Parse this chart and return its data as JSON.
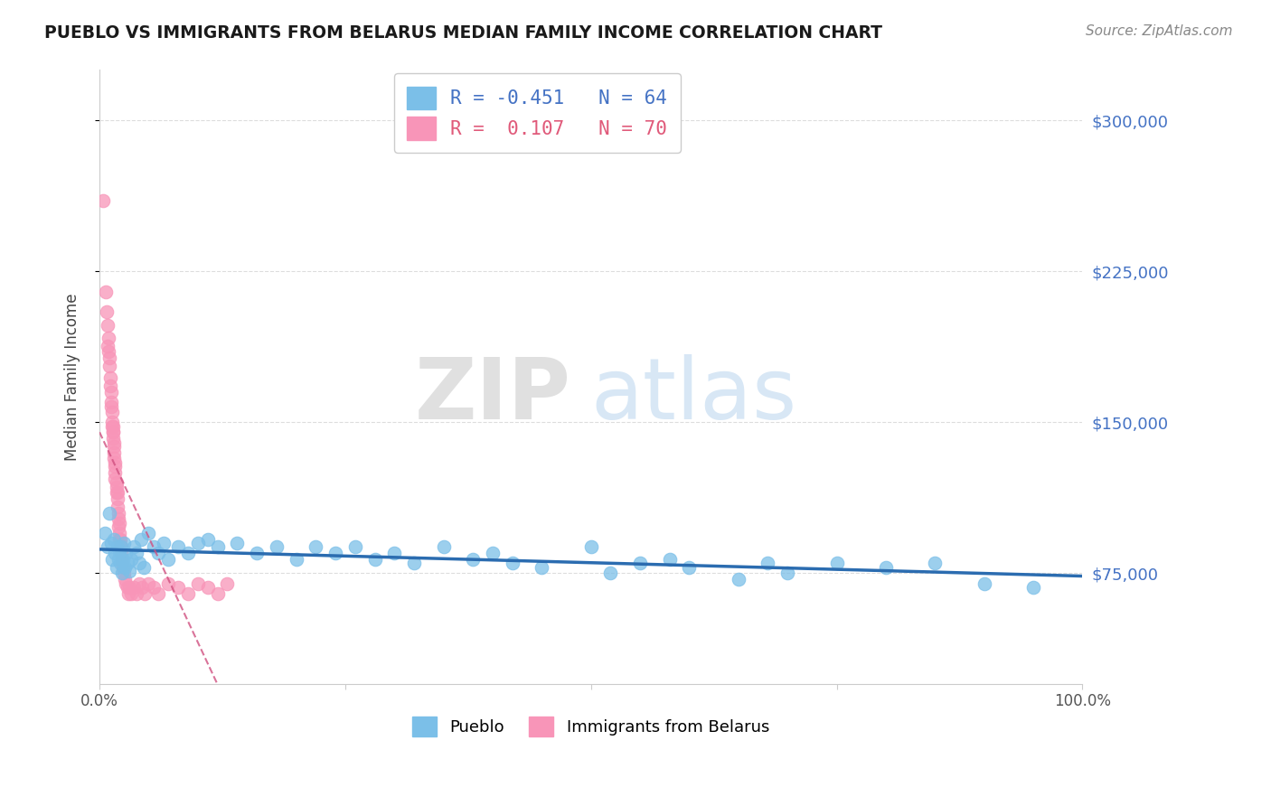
{
  "title": "PUEBLO VS IMMIGRANTS FROM BELARUS MEDIAN FAMILY INCOME CORRELATION CHART",
  "source": "Source: ZipAtlas.com",
  "ylabel": "Median Family Income",
  "xlim": [
    0.0,
    1.0
  ],
  "ylim": [
    20000,
    325000
  ],
  "yticks": [
    75000,
    150000,
    225000,
    300000
  ],
  "blue_R": -0.451,
  "blue_N": 64,
  "pink_R": 0.107,
  "pink_N": 70,
  "blue_color": "#7bbfe8",
  "pink_color": "#f895b8",
  "blue_line_color": "#2b6cb0",
  "pink_line_color": "#d05080",
  "watermark_zip": "ZIP",
  "watermark_atlas": "atlas",
  "legend_label_blue": "Pueblo",
  "legend_label_pink": "Immigrants from Belarus",
  "blue_scatter_x": [
    0.005,
    0.008,
    0.01,
    0.012,
    0.013,
    0.015,
    0.016,
    0.017,
    0.018,
    0.019,
    0.02,
    0.021,
    0.022,
    0.023,
    0.024,
    0.025,
    0.026,
    0.027,
    0.028,
    0.03,
    0.032,
    0.035,
    0.038,
    0.04,
    0.042,
    0.045,
    0.05,
    0.055,
    0.06,
    0.065,
    0.07,
    0.08,
    0.09,
    0.1,
    0.11,
    0.12,
    0.14,
    0.16,
    0.18,
    0.2,
    0.22,
    0.24,
    0.26,
    0.28,
    0.3,
    0.32,
    0.35,
    0.38,
    0.4,
    0.42,
    0.45,
    0.5,
    0.52,
    0.55,
    0.58,
    0.6,
    0.65,
    0.68,
    0.7,
    0.75,
    0.8,
    0.85,
    0.9,
    0.95
  ],
  "blue_scatter_y": [
    95000,
    88000,
    105000,
    90000,
    82000,
    92000,
    85000,
    78000,
    88000,
    82000,
    86000,
    80000,
    88000,
    75000,
    82000,
    90000,
    78000,
    85000,
    80000,
    76000,
    82000,
    88000,
    85000,
    80000,
    92000,
    78000,
    95000,
    88000,
    85000,
    90000,
    82000,
    88000,
    85000,
    90000,
    92000,
    88000,
    90000,
    85000,
    88000,
    82000,
    88000,
    85000,
    88000,
    82000,
    85000,
    80000,
    88000,
    82000,
    85000,
    80000,
    78000,
    88000,
    75000,
    80000,
    82000,
    78000,
    72000,
    80000,
    75000,
    80000,
    78000,
    80000,
    70000,
    68000
  ],
  "pink_scatter_x": [
    0.004,
    0.006,
    0.007,
    0.008,
    0.009,
    0.009,
    0.01,
    0.01,
    0.011,
    0.011,
    0.012,
    0.012,
    0.012,
    0.013,
    0.013,
    0.013,
    0.014,
    0.014,
    0.014,
    0.015,
    0.015,
    0.015,
    0.015,
    0.016,
    0.016,
    0.016,
    0.016,
    0.017,
    0.017,
    0.017,
    0.018,
    0.018,
    0.018,
    0.019,
    0.019,
    0.019,
    0.02,
    0.02,
    0.02,
    0.021,
    0.021,
    0.022,
    0.022,
    0.023,
    0.023,
    0.024,
    0.025,
    0.026,
    0.027,
    0.028,
    0.029,
    0.03,
    0.032,
    0.035,
    0.038,
    0.04,
    0.043,
    0.046,
    0.05,
    0.055,
    0.06,
    0.07,
    0.08,
    0.09,
    0.1,
    0.11,
    0.12,
    0.13,
    0.008,
    0.014
  ],
  "pink_scatter_y": [
    260000,
    215000,
    205000,
    198000,
    192000,
    185000,
    178000,
    182000,
    172000,
    168000,
    165000,
    160000,
    158000,
    155000,
    150000,
    148000,
    145000,
    142000,
    148000,
    140000,
    138000,
    135000,
    132000,
    130000,
    128000,
    125000,
    122000,
    118000,
    120000,
    115000,
    112000,
    108000,
    115000,
    105000,
    102000,
    98000,
    95000,
    100000,
    92000,
    88000,
    92000,
    88000,
    85000,
    82000,
    80000,
    78000,
    75000,
    72000,
    70000,
    68000,
    65000,
    68000,
    65000,
    68000,
    65000,
    70000,
    68000,
    65000,
    70000,
    68000,
    65000,
    70000,
    68000,
    65000,
    70000,
    68000,
    65000,
    70000,
    188000,
    145000
  ]
}
